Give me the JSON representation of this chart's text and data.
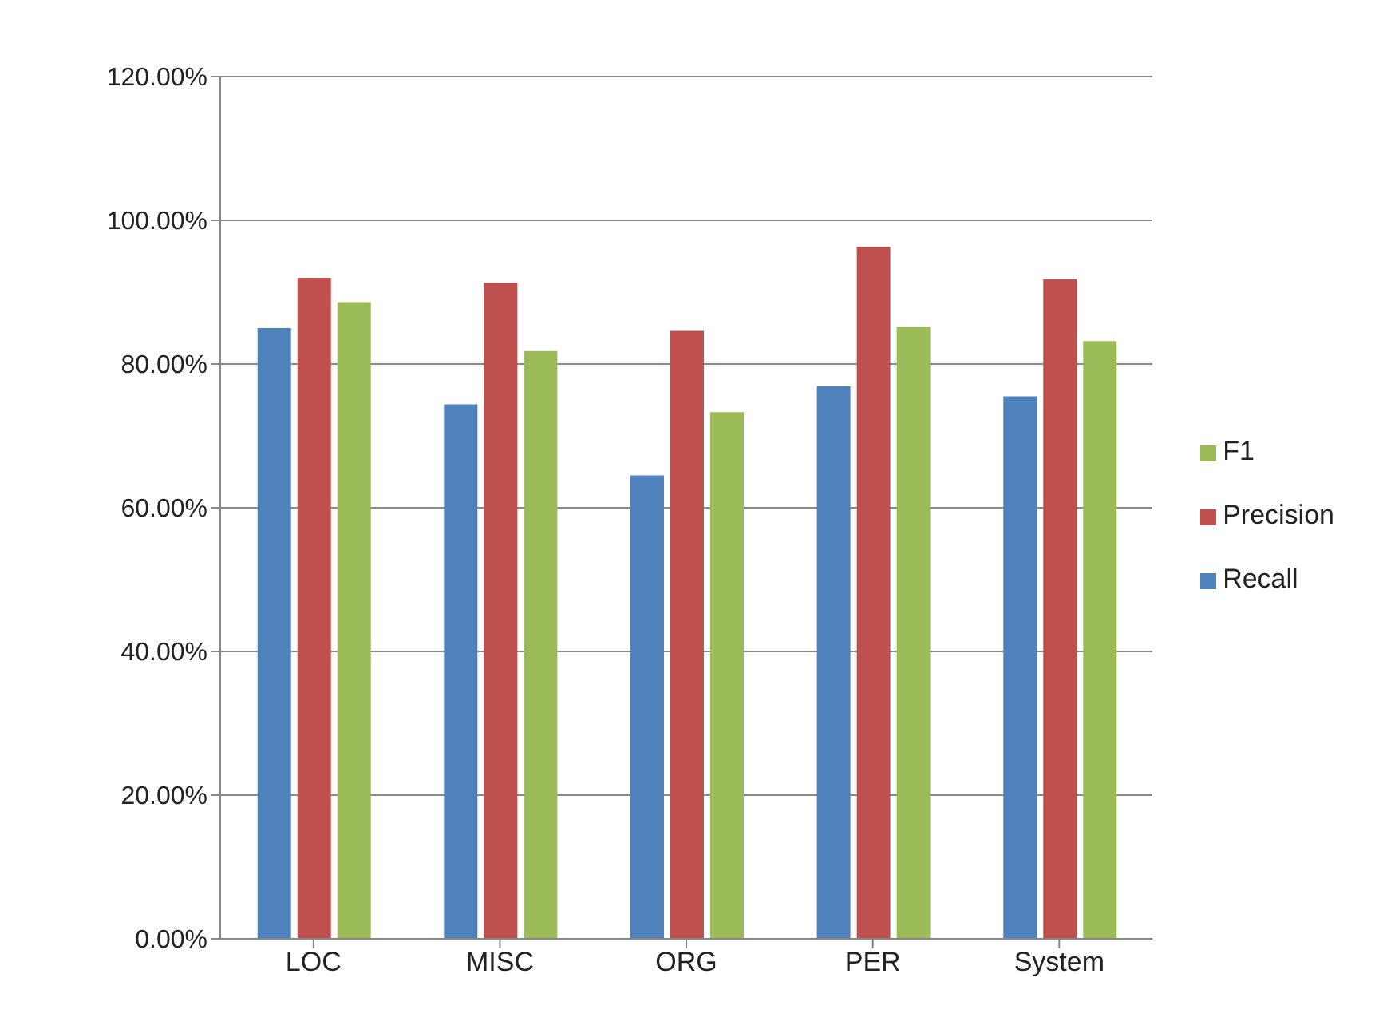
{
  "chart_data": {
    "type": "bar",
    "categories": [
      "LOC",
      "MISC",
      "ORG",
      "PER",
      "System"
    ],
    "series": [
      {
        "name": "Recall",
        "color": "#4f81bd",
        "values": [
          85.0,
          74.4,
          64.5,
          76.9,
          75.5
        ]
      },
      {
        "name": "Precision",
        "color": "#c0504d",
        "values": [
          92.0,
          91.3,
          84.6,
          96.3,
          91.8
        ]
      },
      {
        "name": "F1",
        "color": "#9bbb59",
        "values": [
          88.6,
          81.8,
          73.3,
          85.2,
          83.2
        ]
      }
    ],
    "ylim": [
      0,
      120
    ],
    "yticks": [
      {
        "value": 0,
        "label": "0.00%"
      },
      {
        "value": 20,
        "label": "20.00%"
      },
      {
        "value": 40,
        "label": "40.00%"
      },
      {
        "value": 60,
        "label": "60.00%"
      },
      {
        "value": 80,
        "label": "80.00%"
      },
      {
        "value": 100,
        "label": "100.00%"
      },
      {
        "value": 120,
        "label": "120.00%"
      }
    ],
    "grid": "y",
    "legend": "right"
  }
}
